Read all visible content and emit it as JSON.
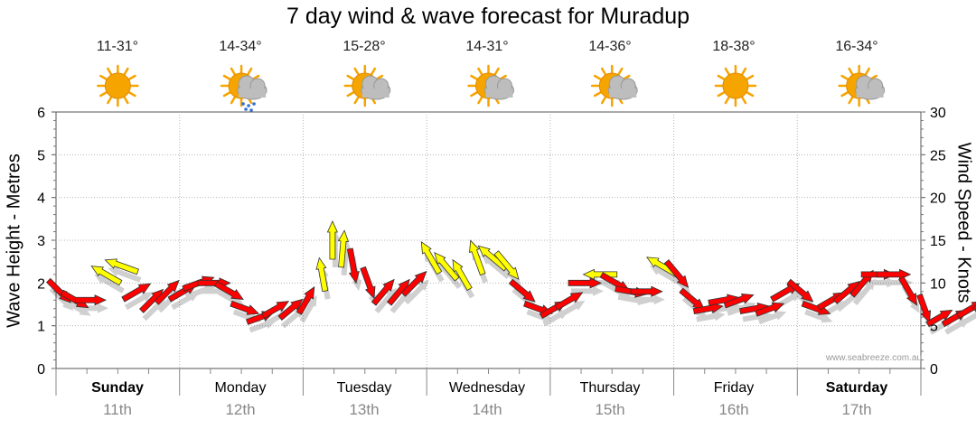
{
  "title": "7 day wind & wave forecast for Muradup",
  "watermark": "www.seabreeze.com.au",
  "days": [
    {
      "name": "Sunday",
      "date": "11th",
      "temp": "11-31°",
      "icon": "sun-icon",
      "weekend": true
    },
    {
      "name": "Monday",
      "date": "12th",
      "temp": "14-34°",
      "icon": "sun-cloud-rain-icon",
      "weekend": false
    },
    {
      "name": "Tuesday",
      "date": "13th",
      "temp": "15-28°",
      "icon": "sun-cloud-icon",
      "weekend": false
    },
    {
      "name": "Wednesday",
      "date": "14th",
      "temp": "14-31°",
      "icon": "sun-cloud-icon",
      "weekend": false
    },
    {
      "name": "Thursday",
      "date": "15th",
      "temp": "14-36°",
      "icon": "sun-cloud-icon",
      "weekend": false
    },
    {
      "name": "Friday",
      "date": "16th",
      "temp": "18-38°",
      "icon": "sun-icon",
      "weekend": false
    },
    {
      "name": "Saturday",
      "date": "17th",
      "temp": "16-34°",
      "icon": "sun-cloud-icon",
      "weekend": true
    }
  ],
  "colors": {
    "arrow_strong": "#ff0000",
    "arrow_light": "#ffff00",
    "grid": "#b4b4b4",
    "sun": "#f6a400",
    "cloud": "#bdbdbd"
  },
  "chart_data": {
    "type": "line",
    "title": "7 day wind & wave forecast for Muradup",
    "ylabel_left": "Wave Height - Metres",
    "ylabel_right": "Wind Speed - Knots",
    "ylim_left": [
      0,
      6
    ],
    "ylim_right": [
      0,
      30
    ],
    "yticks_left": [
      "0",
      "1",
      "2",
      "3",
      "4",
      "5",
      "6"
    ],
    "yticks_right": [
      "0",
      "5",
      "10",
      "15",
      "20",
      "25",
      "30"
    ],
    "x_unit": "hours since Sunday 00:00",
    "categories": [
      "Sunday",
      "Monday",
      "Tuesday",
      "Wednesday",
      "Thursday",
      "Friday",
      "Saturday"
    ],
    "series": [
      {
        "name": "Wind (arrows: speed knots, direction toward deg)",
        "points": [
          {
            "t": 0,
            "speed": 9,
            "dir": 135,
            "strong": true
          },
          {
            "t": 3,
            "speed": 8,
            "dir": 120,
            "strong": true
          },
          {
            "t": 6,
            "speed": 8,
            "dir": 90,
            "strong": true
          },
          {
            "t": 9,
            "speed": 11,
            "dir": 300,
            "strong": false
          },
          {
            "t": 12,
            "speed": 12,
            "dir": 290,
            "strong": false
          },
          {
            "t": 15,
            "speed": 9,
            "dir": 60,
            "strong": true
          },
          {
            "t": 18,
            "speed": 8,
            "dir": 45,
            "strong": true
          },
          {
            "t": 21,
            "speed": 9,
            "dir": 45,
            "strong": true
          },
          {
            "t": 24,
            "speed": 9,
            "dir": 60,
            "strong": true
          },
          {
            "t": 27,
            "speed": 10,
            "dir": 70,
            "strong": true
          },
          {
            "t": 30,
            "speed": 10,
            "dir": 90,
            "strong": true
          },
          {
            "t": 33,
            "speed": 9,
            "dir": 120,
            "strong": true
          },
          {
            "t": 36,
            "speed": 7,
            "dir": 110,
            "strong": true
          },
          {
            "t": 39,
            "speed": 6,
            "dir": 70,
            "strong": true
          },
          {
            "t": 42,
            "speed": 7,
            "dir": 60,
            "strong": true
          },
          {
            "t": 45,
            "speed": 7,
            "dir": 50,
            "strong": true
          },
          {
            "t": 48,
            "speed": 8,
            "dir": 30,
            "strong": true
          },
          {
            "t": 51,
            "speed": 11,
            "dir": 350,
            "strong": false
          },
          {
            "t": 53,
            "speed": 15,
            "dir": 0,
            "strong": false
          },
          {
            "t": 55,
            "speed": 14,
            "dir": 5,
            "strong": false
          },
          {
            "t": 57,
            "speed": 12,
            "dir": 170,
            "strong": true
          },
          {
            "t": 60,
            "speed": 10,
            "dir": 160,
            "strong": true
          },
          {
            "t": 63,
            "speed": 9,
            "dir": 40,
            "strong": true
          },
          {
            "t": 66,
            "speed": 9,
            "dir": 40,
            "strong": true
          },
          {
            "t": 69,
            "speed": 10,
            "dir": 45,
            "strong": true
          },
          {
            "t": 72,
            "speed": 13,
            "dir": 330,
            "strong": false
          },
          {
            "t": 75,
            "speed": 12,
            "dir": 320,
            "strong": false
          },
          {
            "t": 78,
            "speed": 11,
            "dir": 330,
            "strong": false
          },
          {
            "t": 81,
            "speed": 13,
            "dir": 340,
            "strong": false
          },
          {
            "t": 84,
            "speed": 13,
            "dir": 310,
            "strong": false
          },
          {
            "t": 87,
            "speed": 12,
            "dir": 140,
            "strong": false
          },
          {
            "t": 90,
            "speed": 9,
            "dir": 130,
            "strong": true
          },
          {
            "t": 93,
            "speed": 7,
            "dir": 110,
            "strong": true
          },
          {
            "t": 96,
            "speed": 7,
            "dir": 60,
            "strong": true
          },
          {
            "t": 99,
            "speed": 8,
            "dir": 60,
            "strong": true
          },
          {
            "t": 102,
            "speed": 10,
            "dir": 90,
            "strong": true
          },
          {
            "t": 105,
            "speed": 11,
            "dir": 270,
            "strong": false
          },
          {
            "t": 108,
            "speed": 10,
            "dir": 120,
            "strong": true
          },
          {
            "t": 111,
            "speed": 9,
            "dir": 100,
            "strong": true
          },
          {
            "t": 114,
            "speed": 9,
            "dir": 90,
            "strong": true
          },
          {
            "t": 117,
            "speed": 12,
            "dir": 300,
            "strong": false
          },
          {
            "t": 120,
            "speed": 11,
            "dir": 140,
            "strong": true
          },
          {
            "t": 123,
            "speed": 8,
            "dir": 130,
            "strong": true
          },
          {
            "t": 126,
            "speed": 7,
            "dir": 80,
            "strong": true
          },
          {
            "t": 129,
            "speed": 8,
            "dir": 80,
            "strong": true
          },
          {
            "t": 132,
            "speed": 8,
            "dir": 70,
            "strong": true
          },
          {
            "t": 135,
            "speed": 7,
            "dir": 80,
            "strong": true
          },
          {
            "t": 138,
            "speed": 7,
            "dir": 70,
            "strong": true
          },
          {
            "t": 141,
            "speed": 9,
            "dir": 60,
            "strong": true
          },
          {
            "t": 144,
            "speed": 9,
            "dir": 130,
            "strong": true
          },
          {
            "t": 147,
            "speed": 7,
            "dir": 110,
            "strong": true
          },
          {
            "t": 150,
            "speed": 8,
            "dir": 60,
            "strong": true
          },
          {
            "t": 153,
            "speed": 9,
            "dir": 50,
            "strong": true
          },
          {
            "t": 156,
            "speed": 10,
            "dir": 40,
            "strong": true
          },
          {
            "t": 159,
            "speed": 11,
            "dir": 90,
            "strong": true
          },
          {
            "t": 162,
            "speed": 11,
            "dir": 90,
            "strong": true
          },
          {
            "t": 165,
            "speed": 9,
            "dir": 150,
            "strong": true
          },
          {
            "t": 168,
            "speed": 7,
            "dir": 160,
            "strong": true
          },
          {
            "t": 171,
            "speed": 6,
            "dir": 60,
            "strong": true
          },
          {
            "t": 174,
            "speed": 6,
            "dir": 60,
            "strong": true
          },
          {
            "t": 177,
            "speed": 7,
            "dir": 60,
            "strong": true
          },
          {
            "t": 180,
            "speed": 8,
            "dir": 50,
            "strong": true
          },
          {
            "t": 183,
            "speed": 10,
            "dir": 50,
            "strong": true
          },
          {
            "t": 186,
            "speed": 11,
            "dir": 70,
            "strong": true
          },
          {
            "t": 189,
            "speed": 9,
            "dir": 45,
            "strong": true
          },
          {
            "t": 192,
            "speed": 7,
            "dir": 40,
            "strong": true
          }
        ]
      }
    ]
  }
}
